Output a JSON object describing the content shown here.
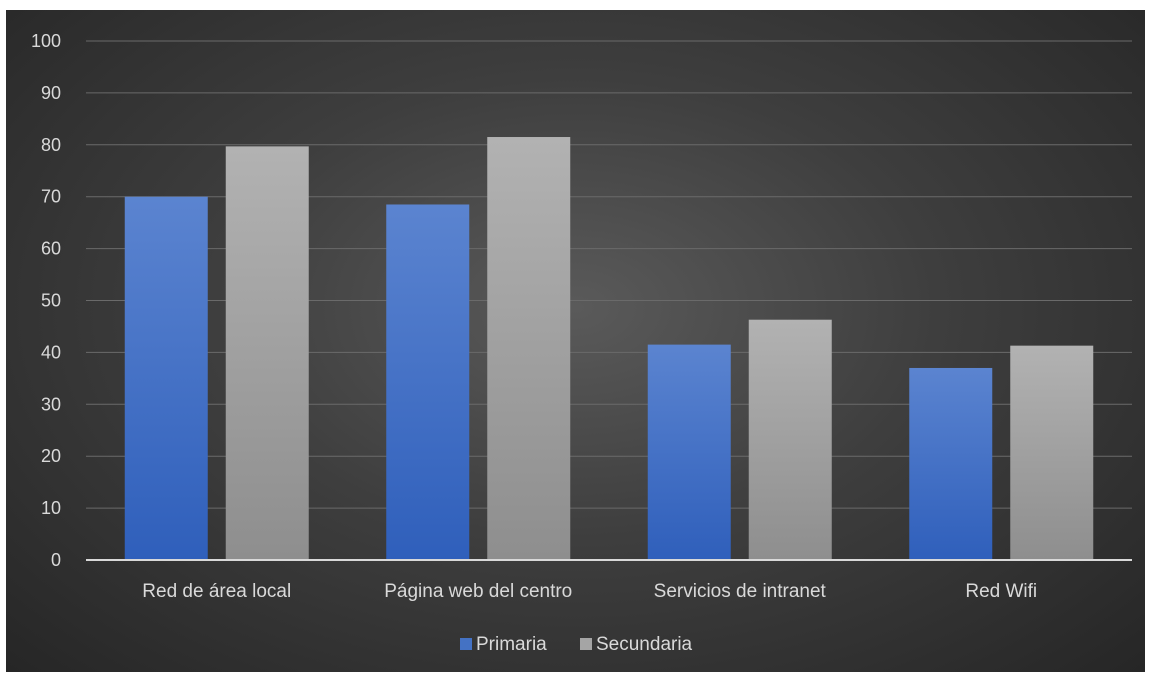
{
  "chart_data": {
    "type": "bar",
    "title": "",
    "xlabel": "",
    "ylabel": "",
    "categories": [
      "Red de área local",
      "Página web del centro",
      "Servicios de intranet",
      "Red Wifi"
    ],
    "series": [
      {
        "name": "Primaria",
        "values": [
          70,
          68.5,
          41.5,
          37
        ],
        "color": "#4472c4"
      },
      {
        "name": "Secundaria",
        "values": [
          79.7,
          81.5,
          46.3,
          41.3
        ],
        "color": "#a5a5a5"
      }
    ],
    "ylim": [
      0,
      100
    ],
    "yticks": [
      "0",
      "10",
      "20",
      "30",
      "40",
      "50",
      "60",
      "70",
      "80",
      "90",
      "100"
    ],
    "grid": true,
    "legend_position": "bottom"
  }
}
